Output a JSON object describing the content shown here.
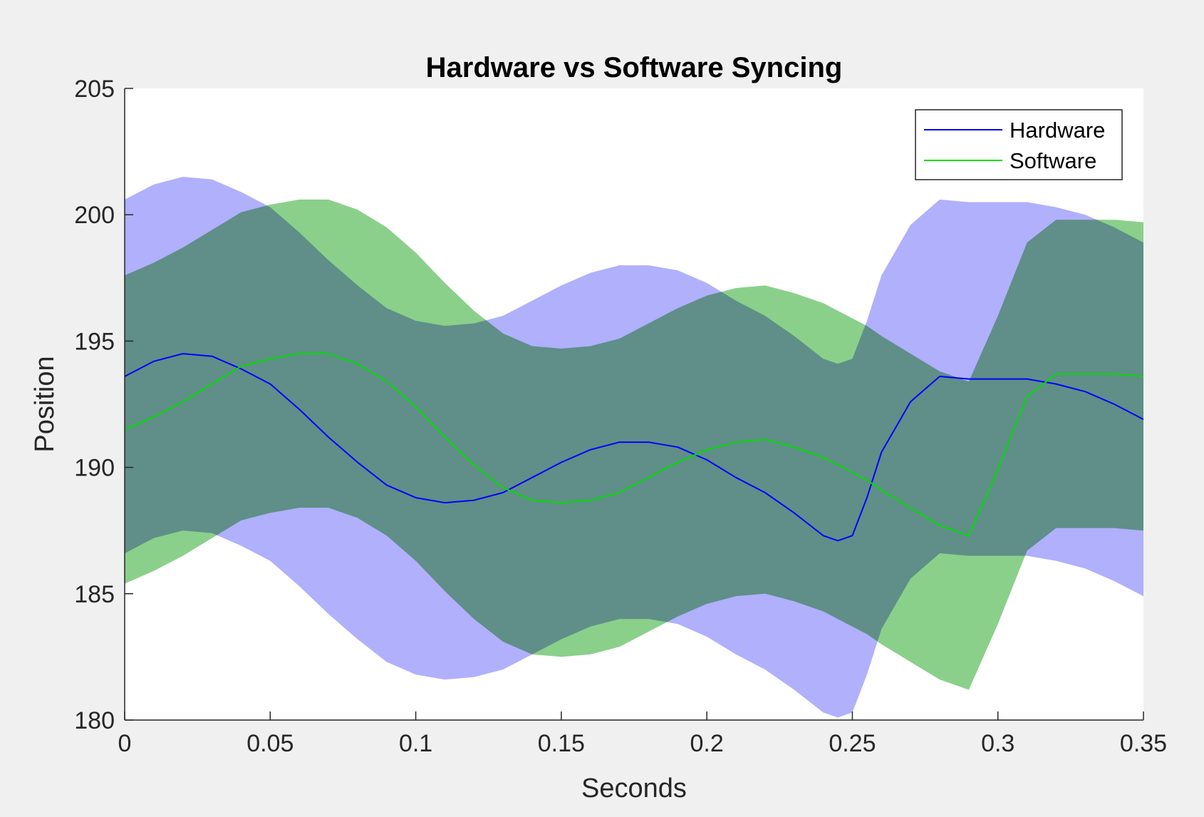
{
  "chart_data": {
    "type": "area",
    "title": "Hardware vs Software Syncing",
    "xlabel": "Seconds",
    "ylabel": "Position",
    "xlim": [
      0,
      0.35
    ],
    "ylim": [
      180,
      205
    ],
    "xticks": [
      0,
      0.05,
      0.1,
      0.15,
      0.2,
      0.25,
      0.3,
      0.35
    ],
    "xtick_labels": [
      "0",
      "0.05",
      "0.1",
      "0.15",
      "0.2",
      "0.25",
      "0.3",
      "0.35"
    ],
    "yticks": [
      180,
      185,
      190,
      195,
      200,
      205
    ],
    "ytick_labels": [
      "180",
      "185",
      "190",
      "195",
      "200",
      "205"
    ],
    "grid": false,
    "legend_position": "top-right",
    "x": [
      0,
      0.01,
      0.02,
      0.03,
      0.04,
      0.05,
      0.06,
      0.07,
      0.08,
      0.09,
      0.1,
      0.11,
      0.12,
      0.13,
      0.14,
      0.15,
      0.16,
      0.17,
      0.18,
      0.19,
      0.2,
      0.21,
      0.22,
      0.23,
      0.24,
      0.245,
      0.25,
      0.255,
      0.26,
      0.27,
      0.28,
      0.29,
      0.3,
      0.31,
      0.32,
      0.33,
      0.34,
      0.35
    ],
    "series": [
      {
        "name": "Hardware",
        "color": "#0000ff",
        "band_color": "#b0b0fc",
        "band_halfwidth": 7,
        "values": [
          193.6,
          194.2,
          194.5,
          194.4,
          193.9,
          193.3,
          192.3,
          191.2,
          190.2,
          189.3,
          188.8,
          188.6,
          188.7,
          189.0,
          189.6,
          190.2,
          190.7,
          191.0,
          191.0,
          190.8,
          190.3,
          189.6,
          189.0,
          188.2,
          187.3,
          187.1,
          187.3,
          188.8,
          190.6,
          192.6,
          193.6,
          193.5,
          193.5,
          193.5,
          193.3,
          193.0,
          192.5,
          191.9
        ]
      },
      {
        "name": "Software",
        "color": "#00dd00",
        "band_color": "#b3feb3",
        "band_halfwidth": 6.1,
        "values": [
          191.5,
          192.0,
          192.6,
          193.3,
          194.0,
          194.3,
          194.5,
          194.5,
          194.1,
          193.4,
          192.4,
          191.2,
          190.1,
          189.2,
          188.7,
          188.6,
          188.7,
          189.0,
          189.6,
          190.2,
          190.7,
          191.0,
          191.1,
          190.8,
          190.4,
          190.1,
          189.8,
          189.5,
          189.1,
          188.4,
          187.7,
          187.3,
          189.9,
          192.8,
          193.7,
          193.7,
          193.7,
          193.6
        ]
      }
    ]
  }
}
